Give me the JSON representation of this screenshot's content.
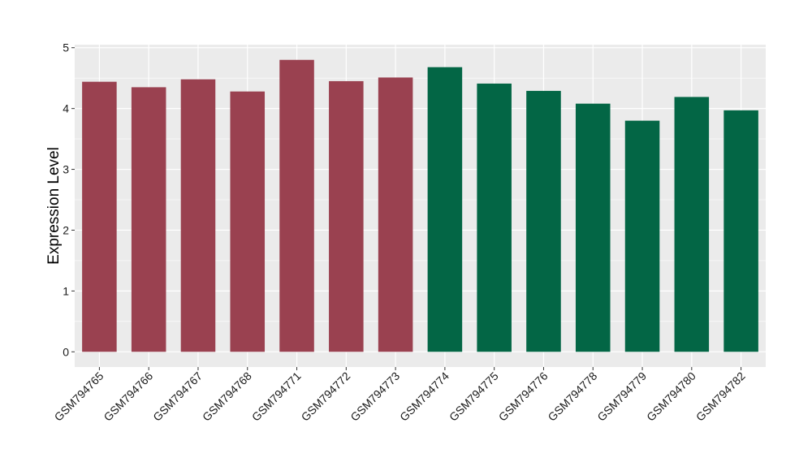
{
  "chart_data": {
    "type": "bar",
    "title": "",
    "xlabel": "",
    "ylabel": "Expression Level",
    "ylim": [
      -0.25,
      5.05
    ],
    "yticks": [
      0,
      1,
      2,
      3,
      4,
      5
    ],
    "ytick_labels": [
      "0",
      "1",
      "2",
      "3",
      "4",
      "5"
    ],
    "grid": true,
    "legend": "none",
    "categories": [
      "GSM794765",
      "GSM794766",
      "GSM794767",
      "GSM794768",
      "GSM794771",
      "GSM794772",
      "GSM794773",
      "GSM794774",
      "GSM794775",
      "GSM794776",
      "GSM794778",
      "GSM794779",
      "GSM794780",
      "GSM794782"
    ],
    "values": [
      4.44,
      4.35,
      4.48,
      4.28,
      4.8,
      4.45,
      4.51,
      4.68,
      4.41,
      4.29,
      4.08,
      3.8,
      4.19,
      3.97
    ],
    "bar_colors": [
      "#9a4150",
      "#9a4150",
      "#9a4150",
      "#9a4150",
      "#9a4150",
      "#9a4150",
      "#9a4150",
      "#036645",
      "#036645",
      "#036645",
      "#036645",
      "#036645",
      "#036645",
      "#036645"
    ],
    "panel_background": "#ebebeb",
    "grid_color": "#ffffff"
  }
}
